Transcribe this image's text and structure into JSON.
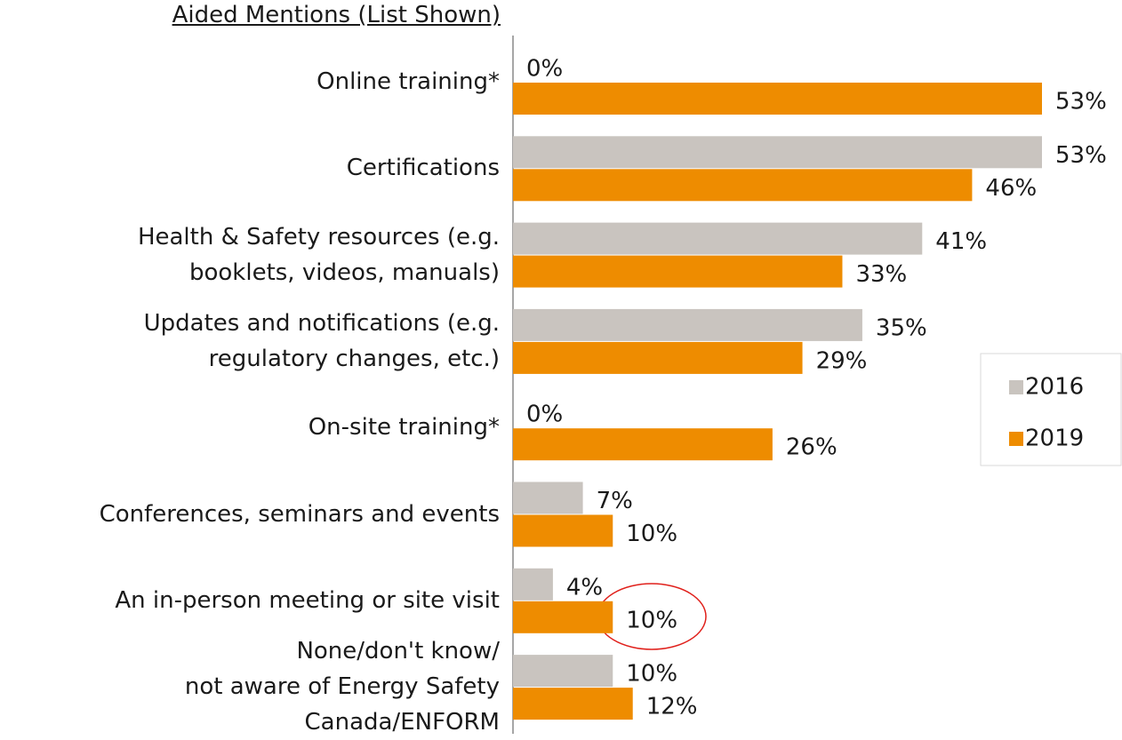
{
  "chart_data": {
    "type": "hbar",
    "title": "Aided Mentions (List Shown)",
    "categories": [
      "Online training*",
      "Certifications",
      "Health & Safety resources (e.g.\nbooklets, videos, manuals)",
      "Updates and notifications (e.g.\nregulatory changes, etc.)",
      "On-site training*",
      "Conferences, seminars and events",
      "An in-person meeting or site visit",
      "None/don't know/\nnot aware of Energy Safety\nCanada/ENFORM"
    ],
    "series": [
      {
        "name": "2016",
        "color": "#c9c4bf",
        "values": [
          0,
          53,
          41,
          35,
          0,
          7,
          4,
          10
        ],
        "value_labels": [
          "0%",
          "53%",
          "41%",
          "35%",
          "0%",
          "7%",
          "4%",
          "10%"
        ]
      },
      {
        "name": "2019",
        "color": "#ee8c00",
        "values": [
          53,
          46,
          33,
          29,
          26,
          10,
          10,
          12
        ],
        "value_labels": [
          "53%",
          "46%",
          "33%",
          "29%",
          "26%",
          "10%",
          "10%",
          "12%"
        ]
      }
    ],
    "legend": "right"
  }
}
